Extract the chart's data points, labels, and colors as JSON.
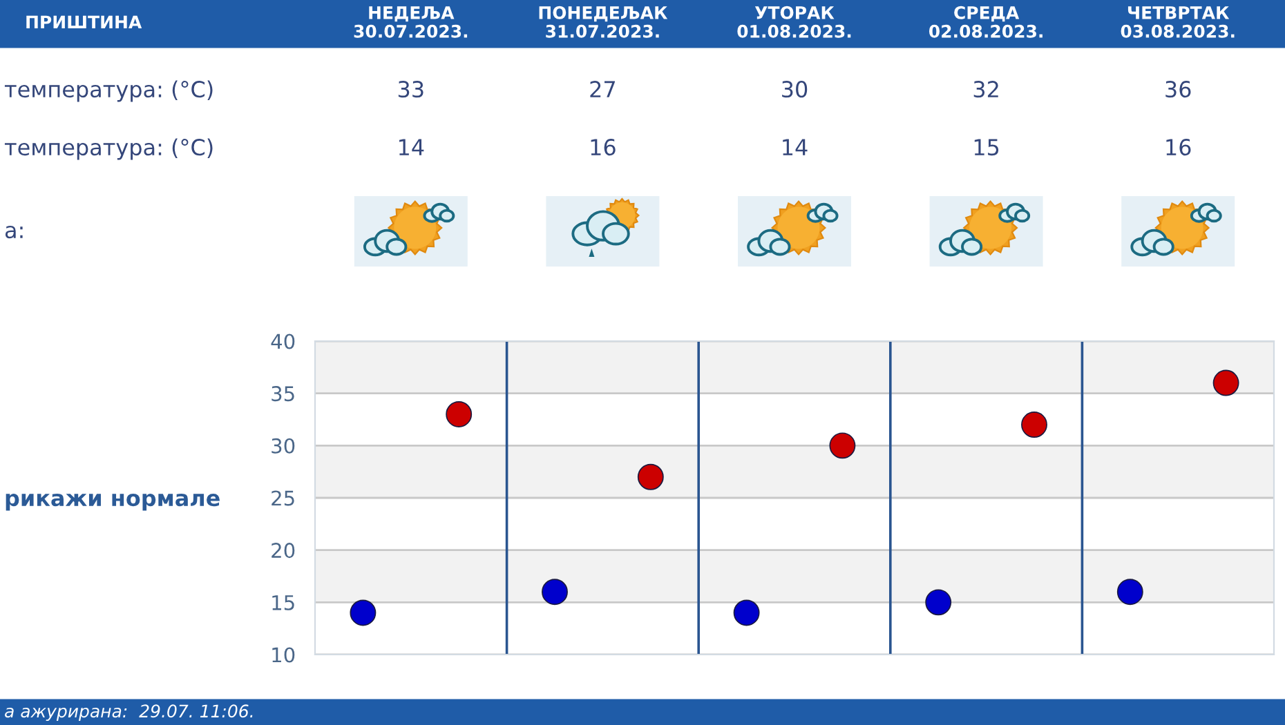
{
  "chart_data": {
    "type": "scatter",
    "title": "ПРИШТИНА",
    "categories": [
      null,
      null,
      null,
      null,
      null
    ],
    "series": [
      {
        "color": "#cc0000",
        "values": [
          33,
          27,
          30,
          32,
          36
        ]
      },
      {
        "color": "#0000cc",
        "values": [
          14,
          16,
          14,
          15,
          16
        ]
      }
    ],
    "ylim": [
      10,
      40
    ],
    "yticks": [
      10,
      15,
      20,
      25,
      30,
      35,
      40
    ],
    "grid": "y",
    "marker": "circle",
    "data_labels": true,
    "bands": [
      {
        "axis": "y",
        "from": 15,
        "to": 20,
        "color": "#f2f2f2"
      },
      {
        "axis": "y",
        "from": 25,
        "to": 30,
        "color": "#f2f2f2"
      },
      {
        "axis": "y",
        "from": 35,
        "to": 40,
        "color": "#f2f2f2"
      }
    ],
    "annotations": [
      "НЕДЕЉА\n30.07.2023.",
      "ПОНЕДЕЉАК\n31.07.2023.",
      "УТОРАК\n01.08.2023.",
      "СРЕДА\n02.08.2023.",
      "ЧЕТВРТАК\n03.08.2023.",
      "температура: (°C)",
      "температура: (°C)",
      "а:",
      "рикажи нормале",
      "а ажурирана:  29.07. 11:06."
    ]
  }
}
